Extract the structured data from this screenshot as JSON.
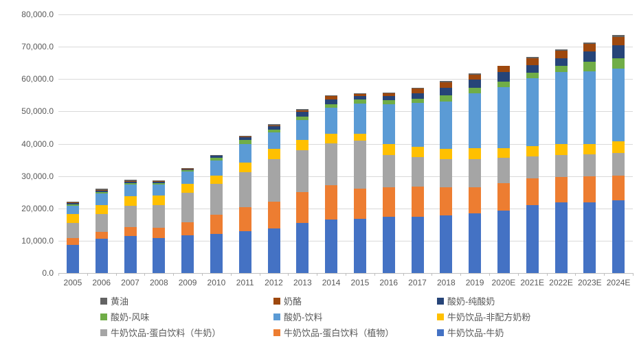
{
  "chart_data": {
    "type": "bar",
    "stacked": true,
    "title": "",
    "xlabel": "",
    "ylabel": "",
    "ylim": [
      0,
      80000
    ],
    "ytick_step": 10000,
    "ytick_labels": [
      "0.0",
      "10,000.0",
      "20,000.0",
      "30,000.0",
      "40,000.0",
      "50,000.0",
      "60,000.0",
      "70,000.0",
      "80,000.0"
    ],
    "grid": true,
    "legend_position": "bottom",
    "legend_reading_order": [
      "黄油",
      "奶酪",
      "酸奶-纯酸奶",
      "酸奶-风味",
      "酸奶-饮料",
      "牛奶饮品-非配方奶粉",
      "牛奶饮品-蛋白饮料（牛奶）",
      "牛奶饮品-蛋白饮料（植物）",
      "牛奶饮品-牛奶"
    ],
    "categories": [
      "2005",
      "2006",
      "2007",
      "2008",
      "2009",
      "2010",
      "2011",
      "2012",
      "2013",
      "2014",
      "2015",
      "2016",
      "2017",
      "2018",
      "2019",
      "2020E",
      "2021E",
      "2022E",
      "2023E",
      "2024E"
    ],
    "series": [
      {
        "name": "牛奶饮品-牛奶",
        "color": "#4472C4",
        "values": [
          8800,
          10600,
          11400,
          10900,
          11700,
          12100,
          12900,
          13700,
          15500,
          16500,
          16700,
          17300,
          17500,
          17800,
          18500,
          19400,
          21000,
          21900,
          21900,
          22400
        ]
      },
      {
        "name": "牛奶饮品-蛋白饮料（植物）",
        "color": "#ED7D31",
        "values": [
          2100,
          2100,
          2800,
          3200,
          4100,
          5900,
          7500,
          8300,
          9600,
          10600,
          9300,
          9200,
          9200,
          8700,
          8100,
          8400,
          8300,
          7800,
          8100,
          7700
        ]
      },
      {
        "name": "牛奶饮品-蛋白饮料（牛奶）",
        "color": "#A5A5A5",
        "values": [
          4600,
          5600,
          6500,
          6900,
          9000,
          9600,
          10900,
          13200,
          12900,
          13100,
          15000,
          9900,
          9100,
          8700,
          8700,
          7900,
          6700,
          6700,
          6700,
          7100
        ]
      },
      {
        "name": "牛奶饮品-非配方奶粉",
        "color": "#FFC000",
        "values": [
          2800,
          2800,
          3100,
          3000,
          2800,
          2600,
          2800,
          3200,
          3200,
          2900,
          2000,
          3400,
          3200,
          3300,
          3300,
          3000,
          3300,
          3400,
          3300,
          3500
        ]
      },
      {
        "name": "酸奶-饮料",
        "color": "#5B9BD5",
        "values": [
          2500,
          3500,
          3500,
          3400,
          3900,
          4700,
          5900,
          5100,
          6200,
          8000,
          9500,
          12400,
          13600,
          14600,
          17000,
          18900,
          20900,
          22300,
          22500,
          22500
        ]
      },
      {
        "name": "酸奶-风味",
        "color": "#70AD47",
        "values": [
          500,
          550,
          550,
          450,
          400,
          850,
          1200,
          950,
          1000,
          1200,
          1100,
          1200,
          1300,
          1800,
          1600,
          1600,
          1800,
          2100,
          2800,
          3200
        ]
      },
      {
        "name": "酸奶-纯酸奶",
        "color": "#264478",
        "values": [
          350,
          400,
          450,
          350,
          250,
          500,
          800,
          1000,
          1400,
          1400,
          1200,
          1400,
          1800,
          2500,
          2600,
          3000,
          2400,
          2300,
          3200,
          4000
        ]
      },
      {
        "name": "奶酪",
        "color": "#9E480E",
        "values": [
          150,
          200,
          250,
          250,
          150,
          150,
          200,
          250,
          600,
          1000,
          500,
          850,
          1300,
          1500,
          1600,
          1800,
          2100,
          2300,
          2300,
          2600
        ]
      },
      {
        "name": "黄油",
        "color": "#636363",
        "values": [
          300,
          350,
          300,
          300,
          200,
          200,
          300,
          300,
          350,
          300,
          300,
          250,
          300,
          500,
          300,
          200,
          300,
          300,
          500,
          600
        ]
      }
    ],
    "colors": {
      "gridline": "#D9D9D9",
      "axis_line": "#BFBFBF",
      "tick_text": "#595959",
      "background": "#FFFFFF"
    }
  }
}
